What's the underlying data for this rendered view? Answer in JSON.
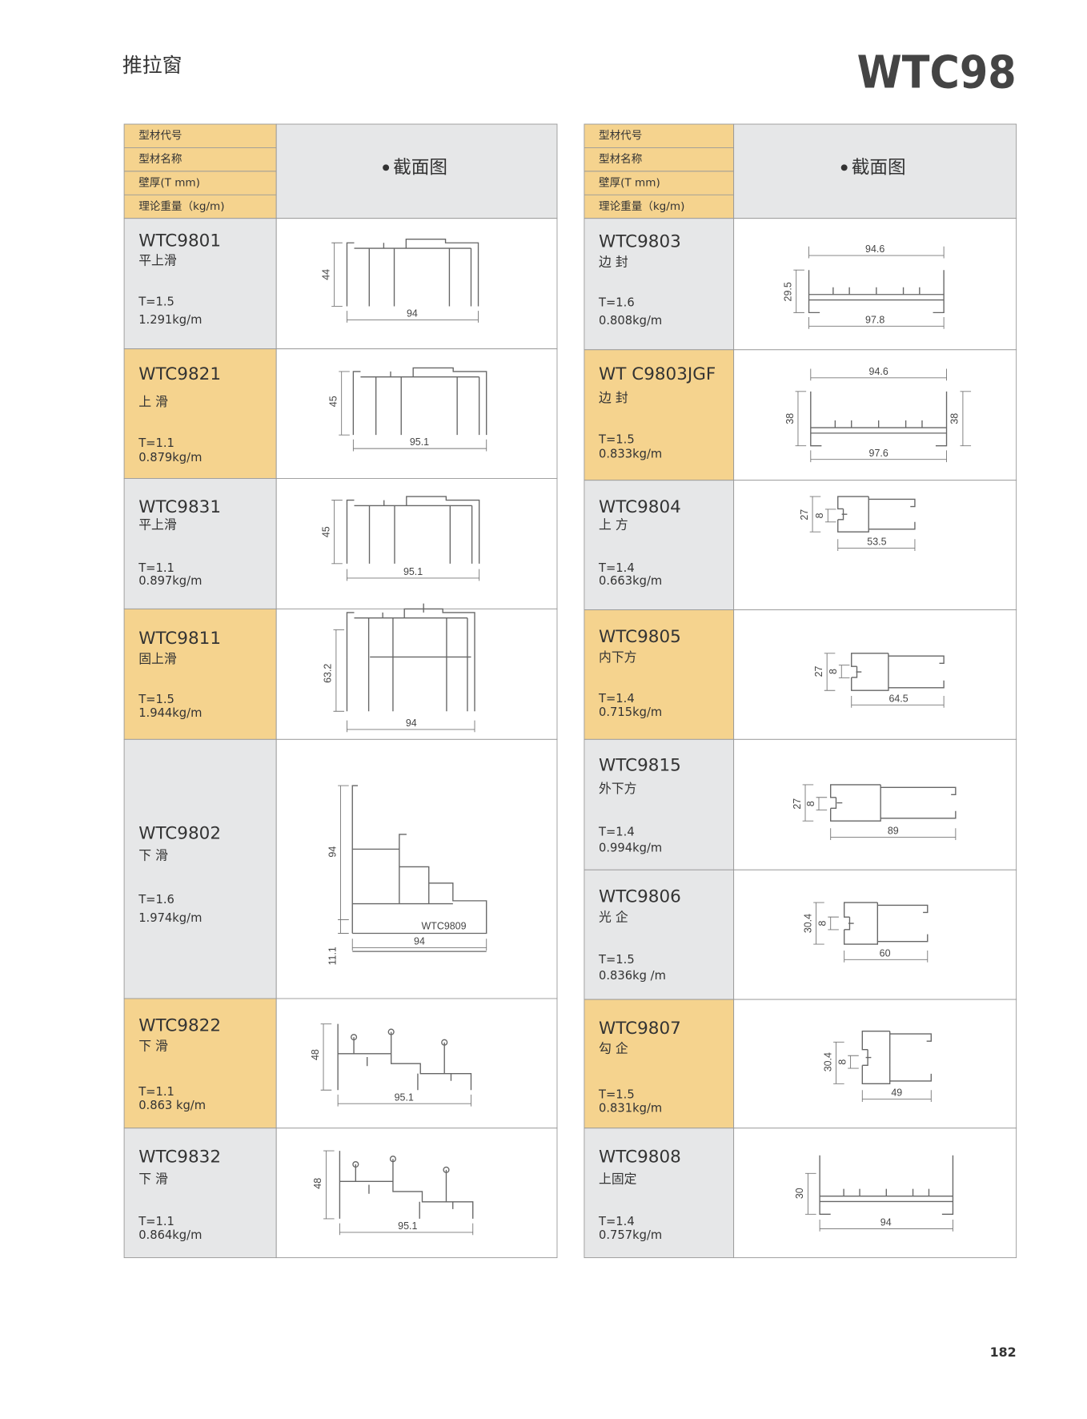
{
  "header": {
    "title": "推拉窗",
    "series": "WTC98"
  },
  "footer": {
    "page": "182"
  },
  "left": {
    "header": {
      "labels": [
        "型材代号",
        "型材名称",
        "壁厚(T mm)",
        "理论重量（kg/m)"
      ],
      "drawing": "截面图",
      "color": "#f5d38e"
    },
    "rows": [
      {
        "code": "WTC9801",
        "name": "平上滑",
        "thickness": "T=1.5",
        "weight": "1.291kg/m",
        "color": "#e6e7e8",
        "dims": [
          "44",
          "94"
        ]
      },
      {
        "code": "WTC9821",
        "name": "上 滑",
        "thickness": "T=1.1",
        "weight": "0.879kg/m",
        "color": "#f5d38e",
        "dims": [
          "45",
          "95.1"
        ]
      },
      {
        "code": "WTC9831",
        "name": "平上滑",
        "thickness": "T=1.1",
        "weight": "0.897kg/m",
        "color": "#e6e7e8",
        "dims": [
          "45",
          "95.1"
        ]
      },
      {
        "code": "WTC9811",
        "name": "固上滑",
        "thickness": "T=1.5",
        "weight": "1.944kg/m",
        "color": "#f5d38e",
        "dims": [
          "63.2",
          "94"
        ]
      },
      {
        "code": "WTC9802",
        "name": "下 滑",
        "thickness": "T=1.6",
        "weight": "1.974kg/m",
        "color": "#e6e7e8",
        "dims": [
          "94",
          "WTC9809",
          "94",
          "11.1"
        ]
      },
      {
        "code": "WTC9822",
        "name": "下 滑",
        "thickness": "T=1.1",
        "weight": "0.863 kg/m",
        "color": "#f5d38e",
        "dims": [
          "48",
          "95.1"
        ]
      },
      {
        "code": "WTC9832",
        "name": "下 滑",
        "thickness": "T=1.1",
        "weight": "0.864kg/m",
        "color": "#e6e7e8",
        "dims": [
          "48",
          "95.1"
        ]
      }
    ]
  },
  "right": {
    "header": {
      "labels": [
        "型材代号",
        "型材名称",
        "壁厚(T mm)",
        "理论重量（kg/m)"
      ],
      "drawing": "截面图",
      "color": "#f5d38e"
    },
    "rows": [
      {
        "code": "WTC9803",
        "name": "边 封",
        "thickness": "T=1.6",
        "weight": "0.808kg/m",
        "color": "#e6e7e8",
        "dims": [
          "94.6",
          "29.5",
          "97.8"
        ]
      },
      {
        "code": "WT C9803JGF",
        "name": "边 封",
        "thickness": "T=1.5",
        "weight": "0.833kg/m",
        "color": "#f5d38e",
        "dims": [
          "94.6",
          "38",
          "38",
          "97.6"
        ]
      },
      {
        "code": "WTC9804",
        "name": "上 方",
        "thickness": "T=1.4",
        "weight": "0.663kg/m",
        "color": "#e6e7e8",
        "dims": [
          "27",
          "8",
          "53.5"
        ]
      },
      {
        "code": "WTC9805",
        "name": "内下方",
        "thickness": "T=1.4",
        "weight": "0.715kg/m",
        "color": "#f5d38e",
        "dims": [
          "27",
          "8",
          "64.5"
        ]
      },
      {
        "code": "WTC9815",
        "name": "外下方",
        "thickness": "T=1.4",
        "weight": "0.994kg/m",
        "color": "#e6e7e8",
        "dims": [
          "27",
          "8",
          "89"
        ]
      },
      {
        "code": "WTC9806",
        "name": "光 企",
        "thickness": "T=1.5",
        "weight": "0.836kg /m",
        "color": "#e6e7e8",
        "dims": [
          "30.4",
          "8",
          "60"
        ]
      },
      {
        "code": "WTC9807",
        "name": "勾 企",
        "thickness": "T=1.5",
        "weight": "0.831kg/m",
        "color": "#f5d38e",
        "dims": [
          "30.4",
          "8",
          "49"
        ]
      },
      {
        "code": "WTC9808",
        "name": "上固定",
        "thickness": "T=1.4",
        "weight": "0.757kg/m",
        "color": "#e6e7e8",
        "dims": [
          "30",
          "94"
        ]
      }
    ]
  }
}
